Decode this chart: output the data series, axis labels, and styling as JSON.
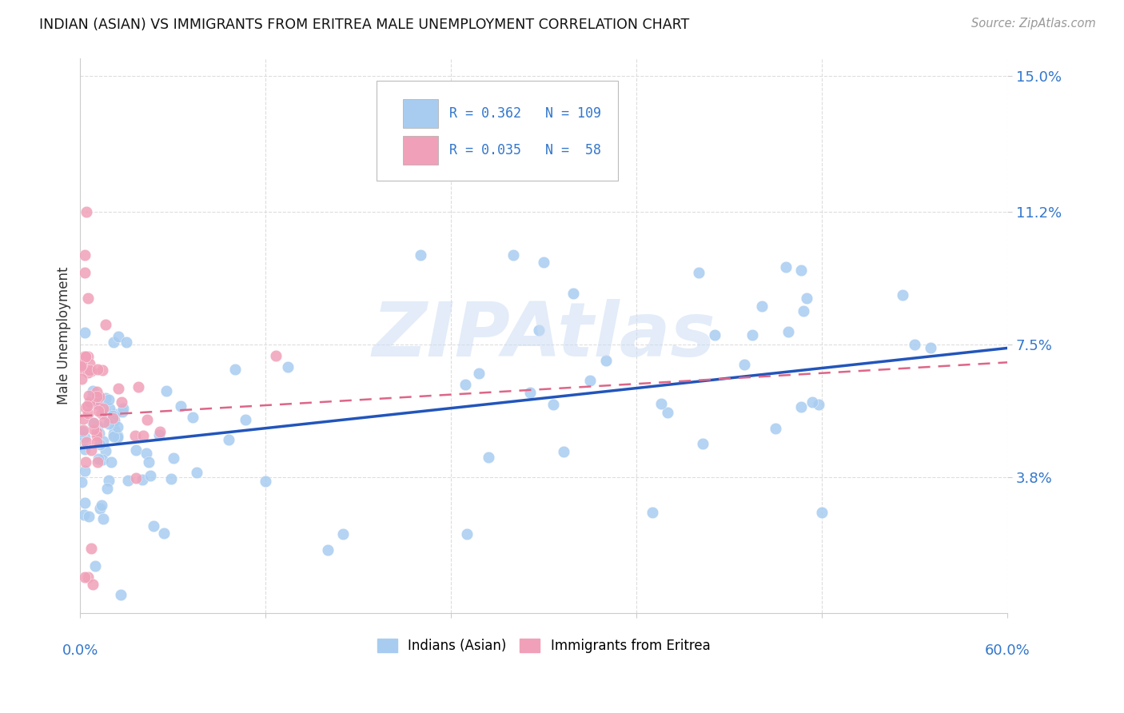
{
  "title": "INDIAN (ASIAN) VS IMMIGRANTS FROM ERITREA MALE UNEMPLOYMENT CORRELATION CHART",
  "source": "Source: ZipAtlas.com",
  "ylabel": "Male Unemployment",
  "watermark": "ZIPAtlas",
  "blue_color": "#a8ccf0",
  "pink_color": "#f0a0b8",
  "blue_line_color": "#2255bb",
  "pink_line_color": "#dd6688",
  "axis_color": "#3377cc",
  "grid_color": "#dddddd",
  "title_color": "#111111",
  "source_color": "#999999",
  "xlim": [
    0.0,
    0.6
  ],
  "ylim": [
    0.0,
    0.155
  ],
  "ytick_vals": [
    0.038,
    0.075,
    0.112,
    0.15
  ],
  "ytick_labels": [
    "3.8%",
    "7.5%",
    "11.2%",
    "15.0%"
  ],
  "blue_line_x0": 0.0,
  "blue_line_y0": 0.046,
  "blue_line_x1": 0.6,
  "blue_line_y1": 0.074,
  "pink_line_x0": 0.0,
  "pink_line_y0": 0.055,
  "pink_line_x1": 0.6,
  "pink_line_y1": 0.07
}
